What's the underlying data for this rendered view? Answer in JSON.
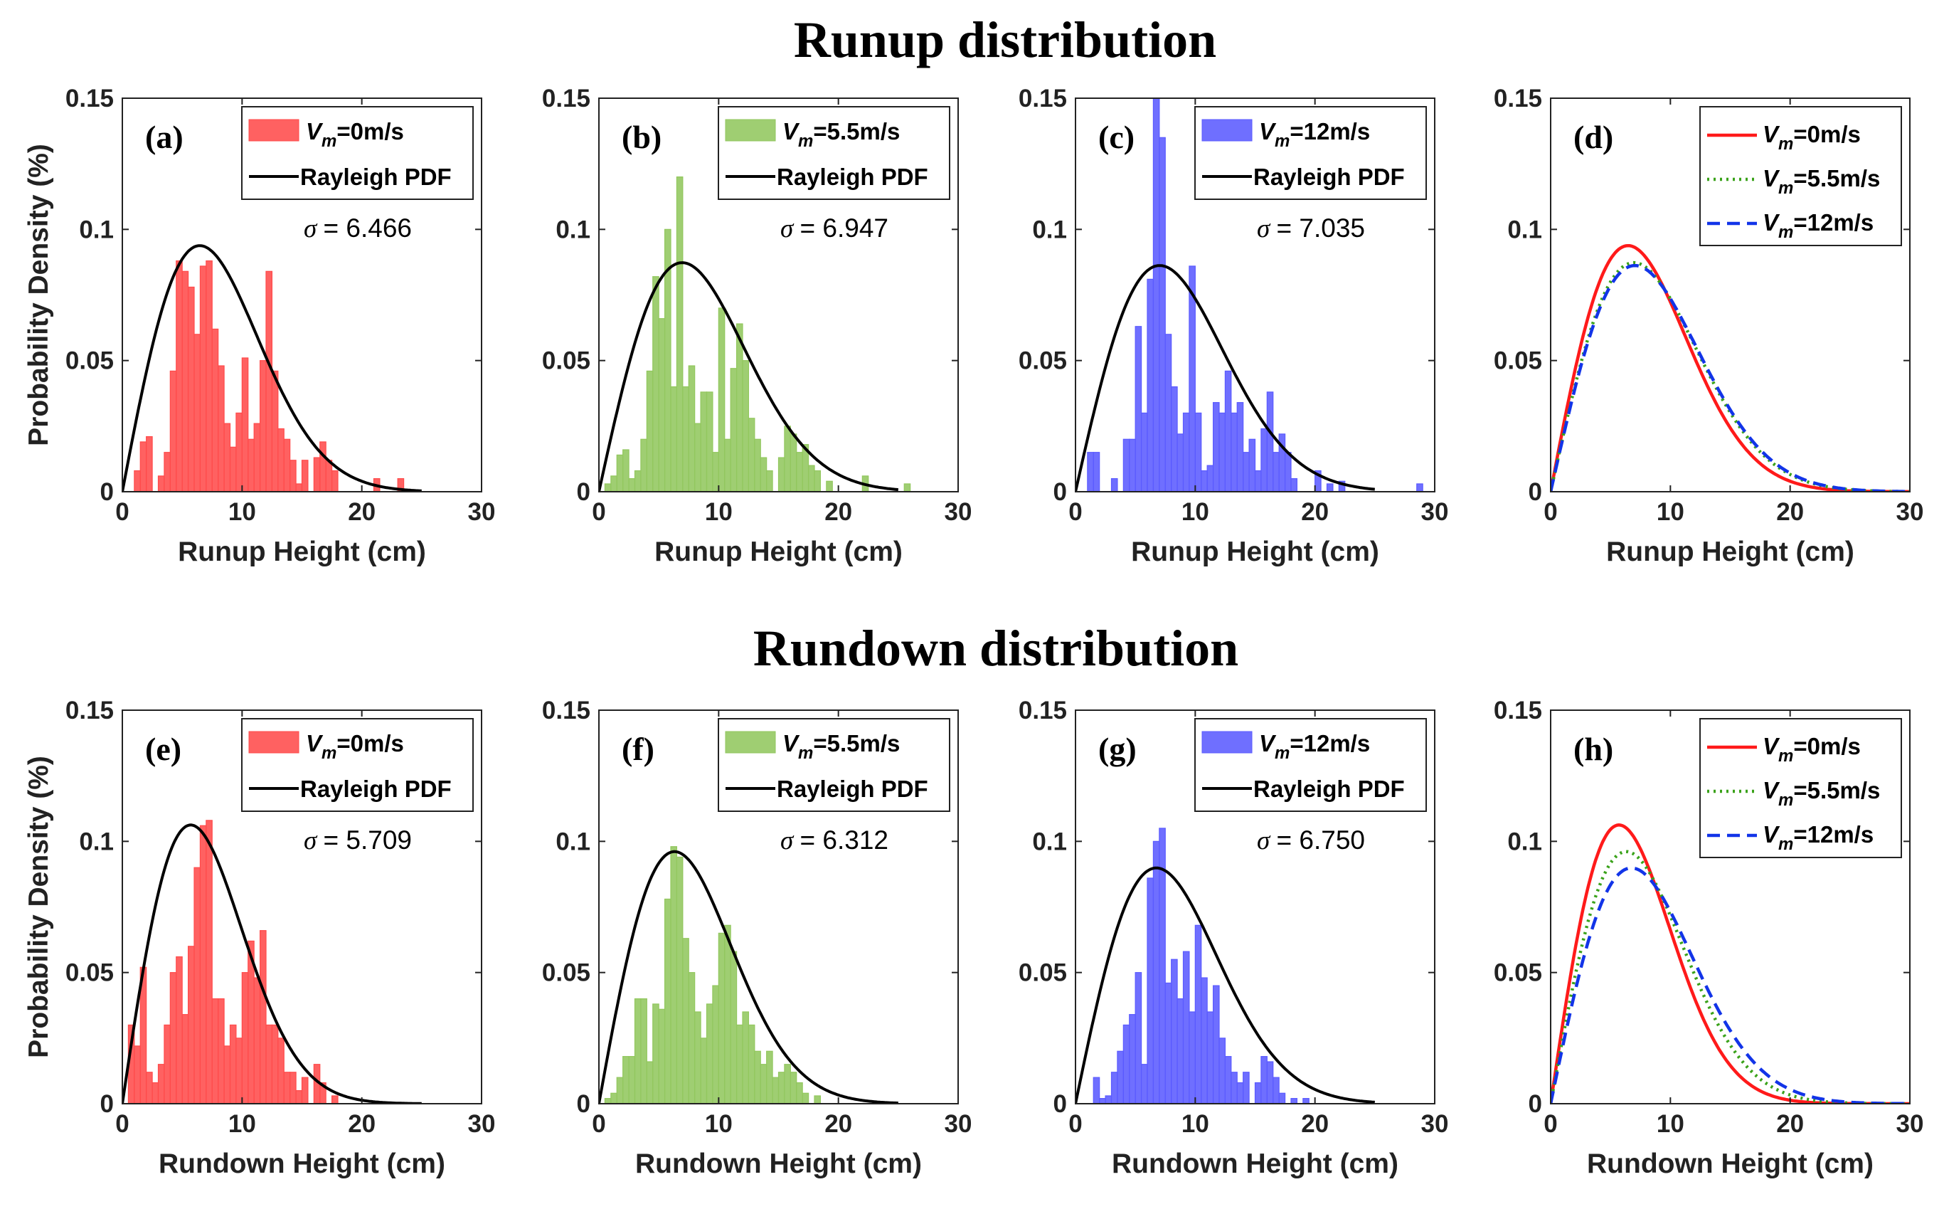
{
  "titles": {
    "top": "Runup distribution",
    "bottom": "Rundown distribution"
  },
  "axis_text": {
    "ylabel": "Probability Density (%)",
    "runup_xlabel": "Runup Height (cm)",
    "rundown_xlabel": "Rundown Height (cm)"
  },
  "colors": {
    "hist_red": "#ff4b4b",
    "hist_green": "#92c75e",
    "hist_blue": "#5b5bff",
    "line_red": "#ff1a1a",
    "line_green": "#3aa21a",
    "line_blue": "#1234e8",
    "pdf_black": "#000000"
  },
  "chart_data": [
    {
      "id": "a",
      "type": "bar",
      "label": "(a)",
      "xlabel": "Runup Height (cm)",
      "ylabel": "Probability Density (%)",
      "xlim": [
        0,
        30
      ],
      "ylim": [
        0,
        0.15
      ],
      "xticks": [
        0,
        10,
        20,
        30
      ],
      "yticks": [
        0,
        0.05,
        0.1,
        0.15
      ],
      "sigma_text": "= 6.466",
      "sigma": 6.466,
      "color": "hist_red",
      "legend": [
        {
          "kind": "bar",
          "label_main": "V",
          "label_sub": "m",
          "label_rest": "=0m/s"
        },
        {
          "kind": "line",
          "label": "Rayleigh PDF"
        }
      ],
      "bin_width": 0.5,
      "bins": [
        [
          1,
          0.008
        ],
        [
          1.5,
          0.019
        ],
        [
          2,
          0.021
        ],
        [
          3,
          0.006
        ],
        [
          3.5,
          0.015
        ],
        [
          4,
          0.046
        ],
        [
          4.5,
          0.088
        ],
        [
          5,
          0.084
        ],
        [
          5.5,
          0.078
        ],
        [
          6,
          0.06
        ],
        [
          6.5,
          0.086
        ],
        [
          7,
          0.088
        ],
        [
          7.5,
          0.062
        ],
        [
          8,
          0.048
        ],
        [
          8.5,
          0.026
        ],
        [
          9,
          0.017
        ],
        [
          9.5,
          0.03
        ],
        [
          10,
          0.051
        ],
        [
          10.5,
          0.02
        ],
        [
          11,
          0.026
        ],
        [
          11.5,
          0.05
        ],
        [
          12,
          0.084
        ],
        [
          12.5,
          0.046
        ],
        [
          13,
          0.024
        ],
        [
          13.5,
          0.02
        ],
        [
          14,
          0.012
        ],
        [
          14.5,
          0.003
        ],
        [
          15,
          0.012
        ],
        [
          16,
          0.013
        ],
        [
          16.5,
          0.019
        ],
        [
          17,
          0.012
        ],
        [
          17.5,
          0.008
        ],
        [
          21,
          0.005
        ],
        [
          23,
          0.005
        ]
      ]
    },
    {
      "id": "b",
      "type": "bar",
      "label": "(b)",
      "xlabel": "Runup Height (cm)",
      "ylabel": "",
      "xlim": [
        0,
        30
      ],
      "ylim": [
        0,
        0.15
      ],
      "xticks": [
        0,
        10,
        20,
        30
      ],
      "yticks": [
        0,
        0.05,
        0.1,
        0.15
      ],
      "sigma_text": "= 6.947",
      "sigma": 6.947,
      "color": "hist_green",
      "legend": [
        {
          "kind": "bar",
          "label_main": "V",
          "label_sub": "m",
          "label_rest": "=5.5m/s"
        },
        {
          "kind": "line",
          "label": "Rayleigh PDF"
        }
      ],
      "bin_width": 0.5,
      "bins": [
        [
          0.5,
          0.003
        ],
        [
          1,
          0.006
        ],
        [
          1.5,
          0.014
        ],
        [
          2,
          0.016
        ],
        [
          2.5,
          0.005
        ],
        [
          3,
          0.008
        ],
        [
          3.5,
          0.02
        ],
        [
          4,
          0.046
        ],
        [
          4.5,
          0.082
        ],
        [
          5,
          0.066
        ],
        [
          5.5,
          0.1
        ],
        [
          6,
          0.04
        ],
        [
          6.5,
          0.12
        ],
        [
          7,
          0.04
        ],
        [
          7.5,
          0.048
        ],
        [
          8,
          0.026
        ],
        [
          8.5,
          0.038
        ],
        [
          9,
          0.038
        ],
        [
          9.5,
          0.015
        ],
        [
          10,
          0.07
        ],
        [
          10.5,
          0.02
        ],
        [
          11,
          0.047
        ],
        [
          11.5,
          0.064
        ],
        [
          12,
          0.05
        ],
        [
          12.5,
          0.028
        ],
        [
          13,
          0.02
        ],
        [
          13.5,
          0.013
        ],
        [
          14,
          0.008
        ],
        [
          15,
          0.013
        ],
        [
          15.5,
          0.025
        ],
        [
          16,
          0.022
        ],
        [
          16.5,
          0.015
        ],
        [
          17,
          0.018
        ],
        [
          17.5,
          0.01
        ],
        [
          18,
          0.008
        ],
        [
          19,
          0.004
        ],
        [
          22,
          0.006
        ],
        [
          25.5,
          0.003
        ]
      ]
    },
    {
      "id": "c",
      "type": "bar",
      "label": "(c)",
      "xlabel": "Runup Height (cm)",
      "ylabel": "",
      "xlim": [
        0,
        30
      ],
      "ylim": [
        0,
        0.15
      ],
      "xticks": [
        0,
        10,
        20,
        30
      ],
      "yticks": [
        0,
        0.05,
        0.1,
        0.15
      ],
      "sigma_text": "= 7.035",
      "sigma": 7.035,
      "color": "hist_blue",
      "legend": [
        {
          "kind": "bar",
          "label_main": "V",
          "label_sub": "m",
          "label_rest": "=12m/s"
        },
        {
          "kind": "line",
          "label": "Rayleigh PDF"
        }
      ],
      "bin_width": 0.5,
      "bins": [
        [
          1,
          0.015
        ],
        [
          1.5,
          0.015
        ],
        [
          3,
          0.005
        ],
        [
          4,
          0.02
        ],
        [
          4.5,
          0.02
        ],
        [
          5,
          0.063
        ],
        [
          5.5,
          0.03
        ],
        [
          6,
          0.081
        ],
        [
          6.5,
          0.15
        ],
        [
          7,
          0.135
        ],
        [
          7.5,
          0.06
        ],
        [
          8,
          0.04
        ],
        [
          8.5,
          0.022
        ],
        [
          9,
          0.03
        ],
        [
          9.5,
          0.086
        ],
        [
          10,
          0.03
        ],
        [
          10.5,
          0.008
        ],
        [
          11,
          0.01
        ],
        [
          11.5,
          0.034
        ],
        [
          12,
          0.03
        ],
        [
          12.5,
          0.046
        ],
        [
          13,
          0.03
        ],
        [
          13.5,
          0.034
        ],
        [
          14,
          0.015
        ],
        [
          14.5,
          0.02
        ],
        [
          15,
          0.008
        ],
        [
          15.5,
          0.024
        ],
        [
          16,
          0.038
        ],
        [
          16.5,
          0.015
        ],
        [
          17,
          0.022
        ],
        [
          17.5,
          0.015
        ],
        [
          18,
          0.005
        ],
        [
          20,
          0.008
        ],
        [
          21,
          0.003
        ],
        [
          22,
          0.004
        ],
        [
          28.5,
          0.003
        ]
      ]
    },
    {
      "id": "d",
      "type": "line",
      "label": "(d)",
      "xlabel": "Runup Height (cm)",
      "ylabel": "",
      "xlim": [
        0,
        30
      ],
      "ylim": [
        0,
        0.15
      ],
      "xticks": [
        0,
        10,
        20,
        30
      ],
      "yticks": [
        0,
        0.05,
        0.1,
        0.15
      ],
      "series": [
        {
          "label_main": "V",
          "label_sub": "m",
          "label_rest": "=0m/s",
          "sigma": 6.466,
          "color": "line_red",
          "dash": "solid"
        },
        {
          "label_main": "V",
          "label_sub": "m",
          "label_rest": "=5.5m/s",
          "sigma": 6.947,
          "color": "line_green",
          "dash": "dotted"
        },
        {
          "label_main": "V",
          "label_sub": "m",
          "label_rest": "=12m/s",
          "sigma": 7.035,
          "color": "line_blue",
          "dash": "dashed"
        }
      ]
    },
    {
      "id": "e",
      "type": "bar",
      "label": "(e)",
      "xlabel": "Rundown Height (cm)",
      "ylabel": "Probability Density (%)",
      "xlim": [
        0,
        30
      ],
      "ylim": [
        0,
        0.15
      ],
      "xticks": [
        0,
        10,
        20,
        30
      ],
      "yticks": [
        0,
        0.05,
        0.1,
        0.15
      ],
      "sigma_text": "= 5.709",
      "sigma": 5.709,
      "color": "hist_red",
      "legend": [
        {
          "kind": "bar",
          "label_main": "V",
          "label_sub": "m",
          "label_rest": "=0m/s"
        },
        {
          "kind": "line",
          "label": "Rayleigh PDF"
        }
      ],
      "bin_width": 0.5,
      "bins": [
        [
          0.5,
          0.03
        ],
        [
          1,
          0.022
        ],
        [
          1.5,
          0.052
        ],
        [
          2,
          0.012
        ],
        [
          2.5,
          0.008
        ],
        [
          3,
          0.015
        ],
        [
          3.5,
          0.03
        ],
        [
          4,
          0.05
        ],
        [
          4.5,
          0.056
        ],
        [
          5,
          0.034
        ],
        [
          5.5,
          0.06
        ],
        [
          6,
          0.09
        ],
        [
          6.5,
          0.106
        ],
        [
          7,
          0.108
        ],
        [
          7.5,
          0.04
        ],
        [
          8,
          0.04
        ],
        [
          8.5,
          0.022
        ],
        [
          9,
          0.03
        ],
        [
          9.5,
          0.025
        ],
        [
          10,
          0.05
        ],
        [
          10.5,
          0.062
        ],
        [
          11,
          0.048
        ],
        [
          11.5,
          0.066
        ],
        [
          12,
          0.03
        ],
        [
          12.5,
          0.03
        ],
        [
          13,
          0.025
        ],
        [
          13.5,
          0.012
        ],
        [
          14,
          0.012
        ],
        [
          14.5,
          0.005
        ],
        [
          15,
          0.01
        ],
        [
          16,
          0.015
        ],
        [
          16.5,
          0.008
        ],
        [
          17.5,
          0.003
        ]
      ]
    },
    {
      "id": "f",
      "type": "bar",
      "label": "(f)",
      "xlabel": "Rundown Height (cm)",
      "ylabel": "",
      "xlim": [
        0,
        30
      ],
      "ylim": [
        0,
        0.15
      ],
      "xticks": [
        0,
        10,
        20,
        30
      ],
      "yticks": [
        0,
        0.05,
        0.1,
        0.15
      ],
      "sigma_text": "= 6.312",
      "sigma": 6.312,
      "color": "hist_green",
      "legend": [
        {
          "kind": "bar",
          "label_main": "V",
          "label_sub": "m",
          "label_rest": "=5.5m/s"
        },
        {
          "kind": "line",
          "label": "Rayleigh PDF"
        }
      ],
      "bin_width": 0.5,
      "bins": [
        [
          0.5,
          0.002
        ],
        [
          1,
          0.004
        ],
        [
          1.5,
          0.01
        ],
        [
          2,
          0.018
        ],
        [
          2.5,
          0.018
        ],
        [
          3,
          0.04
        ],
        [
          3.5,
          0.04
        ],
        [
          4,
          0.016
        ],
        [
          4.5,
          0.038
        ],
        [
          5,
          0.036
        ],
        [
          5.5,
          0.078
        ],
        [
          6,
          0.098
        ],
        [
          6.5,
          0.094
        ],
        [
          7,
          0.063
        ],
        [
          7.5,
          0.05
        ],
        [
          8,
          0.035
        ],
        [
          8.5,
          0.025
        ],
        [
          9,
          0.038
        ],
        [
          9.5,
          0.045
        ],
        [
          10,
          0.065
        ],
        [
          10.5,
          0.068
        ],
        [
          11,
          0.058
        ],
        [
          11.5,
          0.03
        ],
        [
          12,
          0.035
        ],
        [
          12.5,
          0.03
        ],
        [
          13,
          0.02
        ],
        [
          13.5,
          0.015
        ],
        [
          14,
          0.02
        ],
        [
          14.5,
          0.01
        ],
        [
          15,
          0.012
        ],
        [
          15.5,
          0.015
        ],
        [
          16,
          0.012
        ],
        [
          16.5,
          0.008
        ],
        [
          17,
          0.004
        ],
        [
          18,
          0.003
        ]
      ]
    },
    {
      "id": "g",
      "type": "bar",
      "label": "(g)",
      "xlabel": "Rundown Height (cm)",
      "ylabel": "",
      "xlim": [
        0,
        30
      ],
      "ylim": [
        0,
        0.15
      ],
      "xticks": [
        0,
        10,
        20,
        30
      ],
      "yticks": [
        0,
        0.05,
        0.1,
        0.15
      ],
      "sigma_text": "= 6.750",
      "sigma": 6.75,
      "color": "hist_blue",
      "legend": [
        {
          "kind": "bar",
          "label_main": "V",
          "label_sub": "m",
          "label_rest": "=12m/s"
        },
        {
          "kind": "line",
          "label": "Rayleigh PDF"
        }
      ],
      "bin_width": 0.5,
      "bins": [
        [
          1.5,
          0.01
        ],
        [
          2,
          0.002
        ],
        [
          2.5,
          0.003
        ],
        [
          3,
          0.012
        ],
        [
          3.5,
          0.02
        ],
        [
          4,
          0.03
        ],
        [
          4.5,
          0.034
        ],
        [
          5,
          0.05
        ],
        [
          5.5,
          0.015
        ],
        [
          6,
          0.086
        ],
        [
          6.5,
          0.1
        ],
        [
          7,
          0.105
        ],
        [
          7.5,
          0.046
        ],
        [
          8,
          0.055
        ],
        [
          8.5,
          0.04
        ],
        [
          9,
          0.058
        ],
        [
          9.5,
          0.035
        ],
        [
          10,
          0.068
        ],
        [
          10.5,
          0.048
        ],
        [
          11,
          0.035
        ],
        [
          11.5,
          0.045
        ],
        [
          12,
          0.025
        ],
        [
          12.5,
          0.018
        ],
        [
          13,
          0.012
        ],
        [
          13.5,
          0.008
        ],
        [
          14,
          0.012
        ],
        [
          15,
          0.008
        ],
        [
          15.5,
          0.018
        ],
        [
          16,
          0.016
        ],
        [
          16.5,
          0.01
        ],
        [
          17,
          0.004
        ],
        [
          18,
          0.002
        ],
        [
          19,
          0.002
        ]
      ]
    },
    {
      "id": "h",
      "type": "line",
      "label": "(h)",
      "xlabel": "Rundown Height (cm)",
      "ylabel": "",
      "xlim": [
        0,
        30
      ],
      "ylim": [
        0,
        0.15
      ],
      "xticks": [
        0,
        10,
        20,
        30
      ],
      "yticks": [
        0,
        0.05,
        0.1,
        0.15
      ],
      "series": [
        {
          "label_main": "V",
          "label_sub": "m",
          "label_rest": "=0m/s",
          "sigma": 5.709,
          "color": "line_red",
          "dash": "solid"
        },
        {
          "label_main": "V",
          "label_sub": "m",
          "label_rest": "=5.5m/s",
          "sigma": 6.312,
          "color": "line_green",
          "dash": "dotted"
        },
        {
          "label_main": "V",
          "label_sub": "m",
          "label_rest": "=12m/s",
          "sigma": 6.75,
          "color": "line_blue",
          "dash": "dashed"
        }
      ]
    }
  ]
}
